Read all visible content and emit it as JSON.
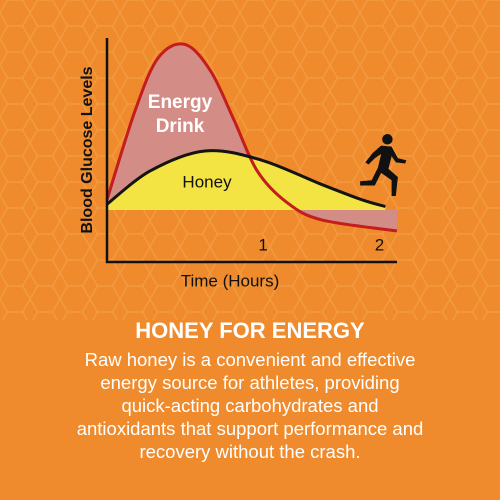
{
  "chart_data": {
    "type": "line",
    "ylabel": "Blood Glucose Levels",
    "xlabel": "Time (Hours)",
    "xlim": [
      -0.34,
      2.15
    ],
    "xticks": [
      1,
      2
    ],
    "ylim": [
      0,
      100
    ],
    "series": [
      {
        "name": "Energy Drink",
        "color": "#c41d1d",
        "fill": "#d48c86",
        "x": [
          -0.34,
          -0.1,
          0.1,
          0.33,
          0.55,
          0.75,
          0.95,
          1.2,
          1.5,
          2.15
        ],
        "values": [
          28,
          68,
          92,
          98,
          86,
          64,
          41,
          27,
          19,
          14
        ]
      },
      {
        "name": "Honey",
        "color": "#141414",
        "fill": "#f3e343",
        "x": [
          -0.34,
          0.03,
          0.5,
          0.98,
          1.5,
          1.85,
          2.05
        ],
        "values": [
          26,
          41,
          50,
          46,
          35,
          28,
          25
        ]
      }
    ]
  },
  "heading": "HONEY FOR ENERGY",
  "body_lines": [
    "Raw honey is a convenient and effective",
    "energy source for athletes, providing",
    "quick-acting carbohydrates and",
    "antioxidants that support performance and",
    "recovery without the crash."
  ]
}
